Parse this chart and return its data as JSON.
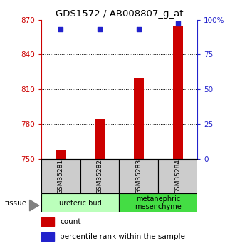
{
  "title": "GDS1572 / AB008807_g_at",
  "samples": [
    "GSM35281",
    "GSM35282",
    "GSM35283",
    "GSM35284"
  ],
  "counts": [
    757,
    784,
    820,
    864
  ],
  "percentile_ranks": [
    93,
    93,
    93,
    97
  ],
  "ylim_left": [
    750,
    870
  ],
  "ylim_right": [
    0,
    100
  ],
  "yticks_left": [
    750,
    780,
    810,
    840,
    870
  ],
  "yticks_right": [
    0,
    25,
    50,
    75,
    100
  ],
  "bar_color": "#cc0000",
  "dot_color": "#2222cc",
  "bar_width": 0.25,
  "tissue_groups": [
    {
      "label": "ureteric bud",
      "samples": [
        0,
        1
      ],
      "color": "#bbffbb"
    },
    {
      "label": "metanephric\nmesenchyme",
      "samples": [
        2,
        3
      ],
      "color": "#44dd44"
    }
  ],
  "background_color": "#ffffff",
  "sample_box_color": "#cccccc",
  "left_axis_color": "#cc0000",
  "right_axis_color": "#2222cc",
  "legend": [
    "count",
    "percentile rank within the sample"
  ],
  "legend_count_color": "#cc0000",
  "legend_pct_color": "#2222cc"
}
